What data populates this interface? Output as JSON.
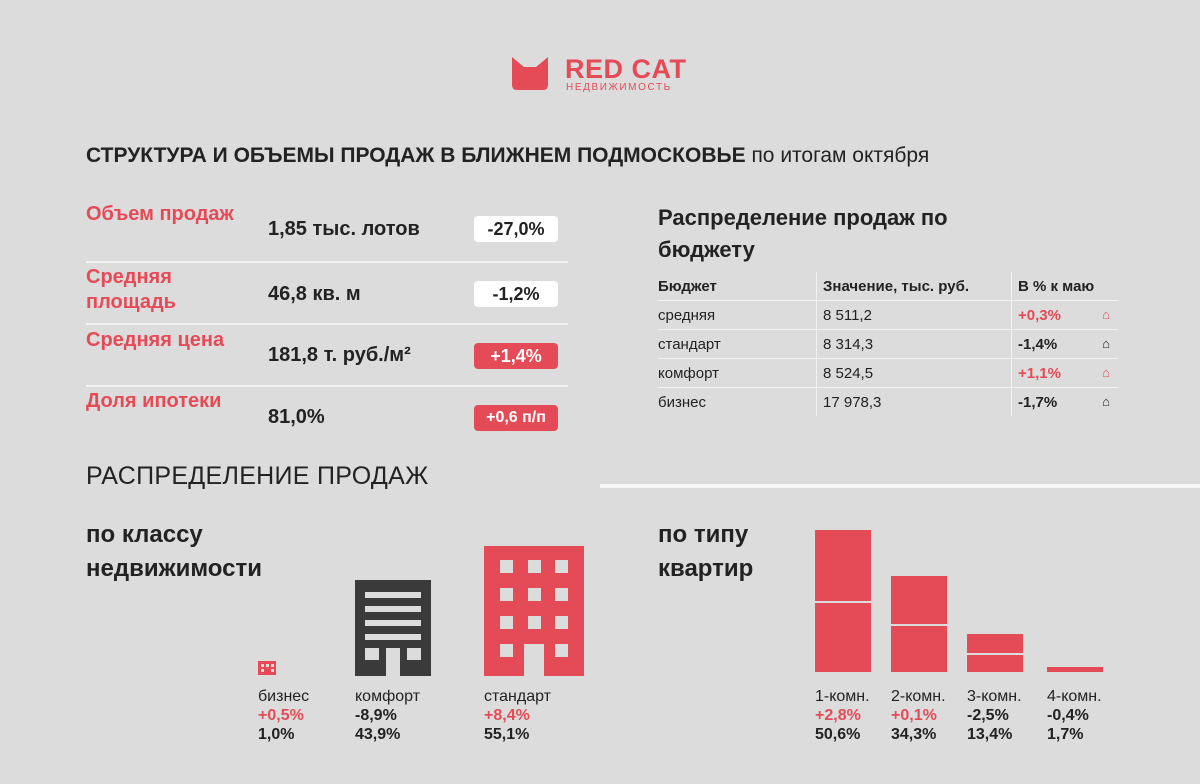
{
  "brand": {
    "name": "RED CAT",
    "subtitle": "НЕДВИЖИМОСТЬ",
    "color": "#e54b57"
  },
  "title": {
    "main": "СТРУКТУРА И ОБЪЕМЫ ПРОДАЖ В БЛИЖНЕМ ПОДМОСКОВЬЕ",
    "sub": "по итогам октября"
  },
  "kpis": [
    {
      "label": "Объем продаж",
      "value": "1,85 тыс. лотов",
      "change": "-27,0%",
      "style": "white"
    },
    {
      "label": "Средняя площадь",
      "value": "46,8 кв. м",
      "change": "-1,2%",
      "style": "white"
    },
    {
      "label": "Средняя цена",
      "value": "181,8 т. руб./м²",
      "change": "+1,4%",
      "style": "red"
    },
    {
      "label": "Доля ипотеки",
      "value": "81,0%",
      "change": "+0,6 п/п",
      "style": "red"
    }
  ],
  "budget": {
    "title": "Распределение продаж по бюджету",
    "headers": [
      "Бюджет",
      "Значение, тыс. руб.",
      "В % к маю"
    ],
    "rows": [
      {
        "name": "средняя",
        "value": "8 511,2",
        "change": "+0,3%",
        "direction": "up"
      },
      {
        "name": "стандарт",
        "value": "8 314,3",
        "change": "-1,4%",
        "direction": "down"
      },
      {
        "name": "комфорт",
        "value": "8 524,5",
        "change": "+1,1%",
        "direction": "up"
      },
      {
        "name": "бизнес",
        "value": "17 978,3",
        "change": "-1,7%",
        "direction": "down"
      }
    ],
    "icons": {
      "up": "house-up-icon",
      "down": "house-down-icon"
    }
  },
  "distribution": {
    "title": "РАСПРЕДЕЛЕНИЕ ПРОДАЖ",
    "by_class": {
      "title": "по классу недвижимости",
      "items": [
        {
          "name": "бизнес",
          "change": "+0,5%",
          "share": "1,0%",
          "positive": true,
          "icon": "building-small-icon"
        },
        {
          "name": "комфорт",
          "change": "-8,9%",
          "share": "43,9%",
          "positive": false,
          "icon": "building-dark-icon"
        },
        {
          "name": "стандарт",
          "change": "+8,4%",
          "share": "55,1%",
          "positive": true,
          "icon": "building-red-icon"
        }
      ]
    },
    "by_type": {
      "title": "по типу квартир"
    }
  },
  "chart_data": {
    "type": "bar",
    "title": "по типу квартир",
    "categories": [
      "1-комн.",
      "2-комн.",
      "3-комн.",
      "4-комн."
    ],
    "values": [
      50.6,
      34.3,
      13.4,
      1.7
    ],
    "share_labels": [
      "50,6%",
      "34,3%",
      "13,4%",
      "1,7%"
    ],
    "change_labels": [
      "+2,8%",
      "+0,1%",
      "-2,5%",
      "-0,4%"
    ],
    "positive": [
      true,
      true,
      false,
      false
    ],
    "color": "#e54b57",
    "xlabel": "",
    "ylabel": "",
    "ylim": [
      0,
      50.6
    ],
    "grid": false
  }
}
